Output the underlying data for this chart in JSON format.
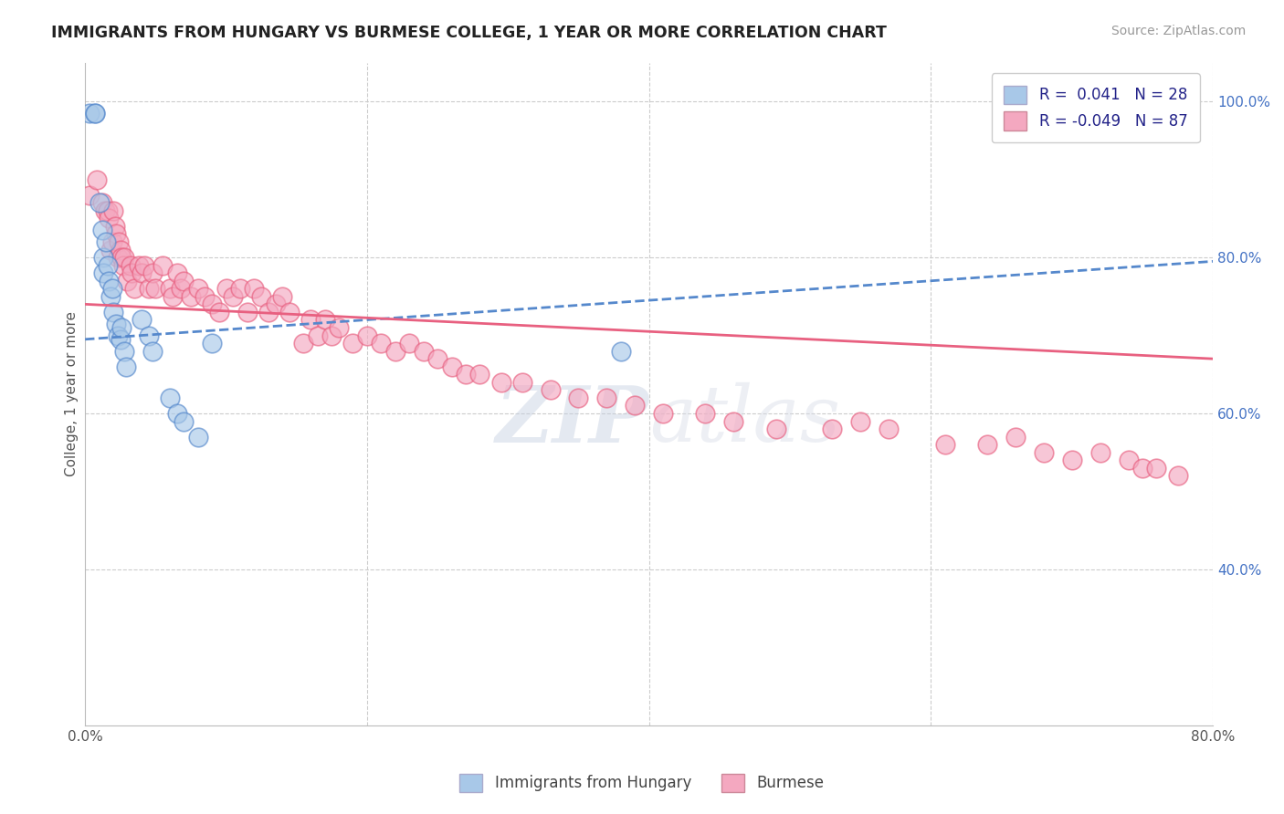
{
  "title": "IMMIGRANTS FROM HUNGARY VS BURMESE COLLEGE, 1 YEAR OR MORE CORRELATION CHART",
  "source": "Source: ZipAtlas.com",
  "ylabel": "College, 1 year or more",
  "xlim": [
    0.0,
    0.8
  ],
  "ylim": [
    0.2,
    1.05
  ],
  "color_hungary": "#a8c8e8",
  "color_burmese": "#f4a8c0",
  "color_line_hungary": "#5588cc",
  "color_line_burmese": "#e86080",
  "watermark_zip": "ZIP",
  "watermark_atlas": "atlas",
  "legend_label1": "Immigrants from Hungary",
  "legend_label2": "Burmese",
  "hungary_x": [
    0.003,
    0.007,
    0.007,
    0.01,
    0.012,
    0.013,
    0.013,
    0.015,
    0.016,
    0.017,
    0.018,
    0.019,
    0.02,
    0.022,
    0.023,
    0.025,
    0.026,
    0.028,
    0.029,
    0.04,
    0.045,
    0.048,
    0.06,
    0.065,
    0.07,
    0.08,
    0.09,
    0.38
  ],
  "hungary_y": [
    0.985,
    0.985,
    0.985,
    0.87,
    0.835,
    0.8,
    0.78,
    0.82,
    0.79,
    0.77,
    0.75,
    0.76,
    0.73,
    0.715,
    0.7,
    0.695,
    0.71,
    0.68,
    0.66,
    0.72,
    0.7,
    0.68,
    0.62,
    0.6,
    0.59,
    0.57,
    0.69,
    0.68
  ],
  "burmese_x": [
    0.003,
    0.008,
    0.012,
    0.014,
    0.016,
    0.017,
    0.018,
    0.019,
    0.02,
    0.021,
    0.022,
    0.023,
    0.024,
    0.025,
    0.026,
    0.027,
    0.028,
    0.03,
    0.032,
    0.033,
    0.035,
    0.038,
    0.04,
    0.042,
    0.045,
    0.048,
    0.05,
    0.055,
    0.06,
    0.062,
    0.065,
    0.068,
    0.07,
    0.075,
    0.08,
    0.085,
    0.09,
    0.095,
    0.1,
    0.105,
    0.11,
    0.115,
    0.12,
    0.125,
    0.13,
    0.135,
    0.14,
    0.145,
    0.155,
    0.16,
    0.165,
    0.17,
    0.175,
    0.18,
    0.19,
    0.2,
    0.21,
    0.22,
    0.23,
    0.24,
    0.25,
    0.26,
    0.27,
    0.28,
    0.295,
    0.31,
    0.33,
    0.35,
    0.37,
    0.39,
    0.41,
    0.44,
    0.46,
    0.49,
    0.53,
    0.55,
    0.57,
    0.61,
    0.64,
    0.66,
    0.68,
    0.7,
    0.72,
    0.74,
    0.75,
    0.76,
    0.775
  ],
  "burmese_y": [
    0.88,
    0.9,
    0.87,
    0.86,
    0.86,
    0.85,
    0.81,
    0.82,
    0.86,
    0.84,
    0.83,
    0.8,
    0.82,
    0.81,
    0.8,
    0.79,
    0.8,
    0.77,
    0.79,
    0.78,
    0.76,
    0.79,
    0.78,
    0.79,
    0.76,
    0.78,
    0.76,
    0.79,
    0.76,
    0.75,
    0.78,
    0.76,
    0.77,
    0.75,
    0.76,
    0.75,
    0.74,
    0.73,
    0.76,
    0.75,
    0.76,
    0.73,
    0.76,
    0.75,
    0.73,
    0.74,
    0.75,
    0.73,
    0.69,
    0.72,
    0.7,
    0.72,
    0.7,
    0.71,
    0.69,
    0.7,
    0.69,
    0.68,
    0.69,
    0.68,
    0.67,
    0.66,
    0.65,
    0.65,
    0.64,
    0.64,
    0.63,
    0.62,
    0.62,
    0.61,
    0.6,
    0.6,
    0.59,
    0.58,
    0.58,
    0.59,
    0.58,
    0.56,
    0.56,
    0.57,
    0.55,
    0.54,
    0.55,
    0.54,
    0.53,
    0.53,
    0.52
  ],
  "hungary_line_x": [
    0.0,
    0.8
  ],
  "hungary_line_y": [
    0.695,
    0.795
  ],
  "burmese_line_x": [
    0.0,
    0.8
  ],
  "burmese_line_y": [
    0.74,
    0.67
  ]
}
